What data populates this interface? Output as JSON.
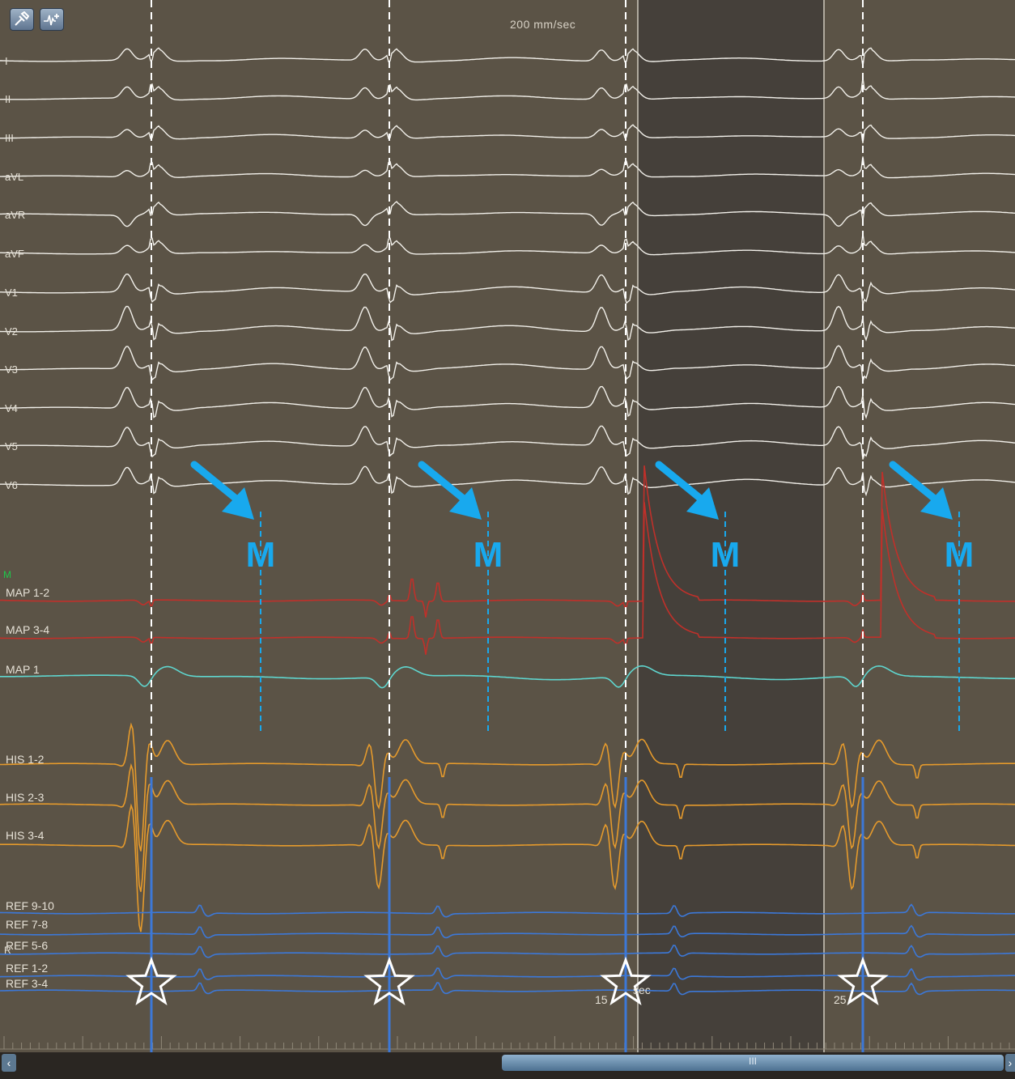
{
  "toolbar": {
    "tools": [
      {
        "name": "calipers-tool-icon"
      },
      {
        "name": "waveform-add-tool-icon"
      }
    ],
    "sweep_speed": "200 mm/sec"
  },
  "colors": {
    "background": "#5b5346",
    "shaded_region": "#45403a",
    "ecg_trace": "#f2f0ea",
    "map_bipolar_trace": "#c0302a",
    "map_unipolar_trace": "#5fd6cf",
    "his_trace": "#e59a2c",
    "ref_trace": "#3c78d8",
    "annotation_blue": "#18a9ee",
    "label_text": "#e6e1d6",
    "marker_label_green": "#1ec84a"
  },
  "marker_row_label": "M",
  "reference_row_label": "R",
  "channels": [
    {
      "label": "I",
      "group": "ecg"
    },
    {
      "label": "II",
      "group": "ecg"
    },
    {
      "label": "III",
      "group": "ecg"
    },
    {
      "label": "aVL",
      "group": "ecg"
    },
    {
      "label": "aVR",
      "group": "ecg"
    },
    {
      "label": "aVF",
      "group": "ecg"
    },
    {
      "label": "V1",
      "group": "ecg"
    },
    {
      "label": "V2",
      "group": "ecg"
    },
    {
      "label": "V3",
      "group": "ecg"
    },
    {
      "label": "V4",
      "group": "ecg"
    },
    {
      "label": "V5",
      "group": "ecg"
    },
    {
      "label": "V6",
      "group": "ecg"
    },
    {
      "label": "MAP 1-2",
      "group": "map_bipolar"
    },
    {
      "label": "MAP 3-4",
      "group": "map_bipolar"
    },
    {
      "label": "MAP 1",
      "group": "map_unipolar"
    },
    {
      "label": "HIS 1-2",
      "group": "his"
    },
    {
      "label": "HIS 2-3",
      "group": "his"
    },
    {
      "label": "HIS 3-4",
      "group": "his"
    },
    {
      "label": "REF 9-10",
      "group": "ref"
    },
    {
      "label": "REF 7-8",
      "group": "ref"
    },
    {
      "label": "REF 5-6",
      "group": "ref"
    },
    {
      "label": "REF 1-2",
      "group": "ref"
    },
    {
      "label": "REF 3-4",
      "group": "ref"
    }
  ],
  "beats": [
    {
      "annotation": "M",
      "pacing_marker": "star"
    },
    {
      "annotation": "M",
      "pacing_marker": "star"
    },
    {
      "annotation": "M",
      "pacing_marker": "star"
    },
    {
      "annotation": "M",
      "pacing_marker": "star"
    }
  ],
  "timeline": {
    "labels": [
      "15",
      "sec",
      "25"
    ]
  },
  "scrollbar": {
    "left_arrow": "‹",
    "right_arrow": "›",
    "grip": "III"
  }
}
